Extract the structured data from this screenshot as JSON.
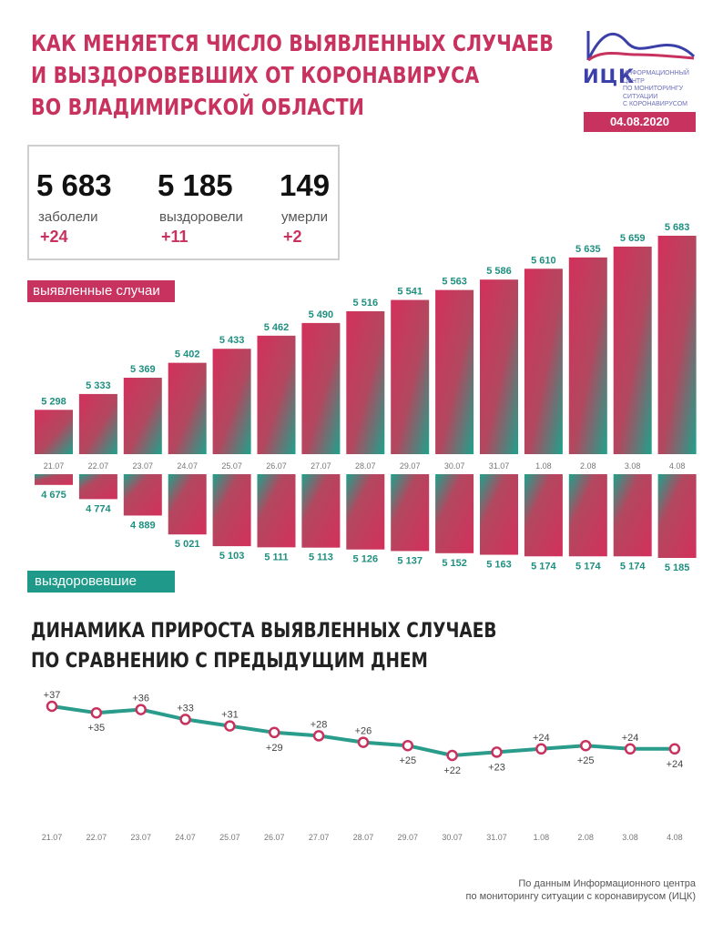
{
  "header": {
    "title_lines": [
      "КАК МЕНЯЕТСЯ ЧИСЛО ВЫЯВЛЕННЫХ СЛУЧАЕВ",
      "И ВЫЗДОРОВЕВШИХ ОТ КОРОНАВИРУСА",
      "ВО ВЛАДИМИРСКОЙ ОБЛАСТИ"
    ],
    "logo_name": "ИЦК",
    "logo_sub_lines": [
      "ИНФОРМАЦИОННЫЙ ЦЕНТР",
      "ПО МОНИТОРИНГУ СИТУАЦИИ",
      "С КОРОНАВИРУСОМ"
    ],
    "date": "04.08.2020"
  },
  "totals": [
    {
      "value": "5 683",
      "label": "заболели",
      "delta": "+24"
    },
    {
      "value": "5 185",
      "label": "выздоровели",
      "delta": "+11"
    },
    {
      "value": "149",
      "label": "умерли",
      "delta": "+2"
    }
  ],
  "labels": {
    "cases_tag": "выявленные случаи",
    "recovered_tag": "выздоровевшие",
    "dynamics_title_lines": [
      "ДИНАМИКА ПРИРОСТА ВЫЯВЛЕННЫХ СЛУЧАЕВ",
      "ПО СРАВНЕНИЮ С ПРЕДЫДУЩИМ ДНЕМ"
    ],
    "source_lines": [
      "По данным Информационного центра",
      "по мониторингу ситуации с коронавирусом (ИЦК)"
    ]
  },
  "colors": {
    "accent": "#c8325f",
    "teal": "#1f9a8a",
    "brand": "#3b3fa8"
  },
  "chart_data": [
    {
      "type": "bar",
      "series": [
        {
          "name": "выявленные случаи",
          "values": [
            5298,
            5333,
            5369,
            5402,
            5433,
            5462,
            5490,
            5516,
            5541,
            5563,
            5586,
            5610,
            5635,
            5659,
            5683
          ]
        }
      ],
      "categories": [
        "21.07",
        "22.07",
        "23.07",
        "24.07",
        "25.07",
        "26.07",
        "27.07",
        "28.07",
        "29.07",
        "30.07",
        "31.07",
        "1.08",
        "2.08",
        "3.08",
        "4.08"
      ],
      "value_labels": [
        "5 298",
        "5 333",
        "5 369",
        "5 402",
        "5 433",
        "5 462",
        "5 490",
        "5 516",
        "5 541",
        "5 563",
        "5 586",
        "5 610",
        "5 635",
        "5 659",
        "5 683"
      ]
    },
    {
      "type": "bar",
      "series": [
        {
          "name": "выздоровевшие",
          "values": [
            4675,
            4774,
            4889,
            5021,
            5103,
            5111,
            5113,
            5126,
            5137,
            5152,
            5163,
            5174,
            5174,
            5174,
            5185
          ]
        }
      ],
      "categories": [
        "21.07",
        "22.07",
        "23.07",
        "24.07",
        "25.07",
        "26.07",
        "27.07",
        "28.07",
        "29.07",
        "30.07",
        "31.07",
        "1.08",
        "2.08",
        "3.08",
        "4.08"
      ],
      "value_labels": [
        "4 675",
        "4 774",
        "4 889",
        "5 021",
        "5 103",
        "5 111",
        "5 113",
        "5 126",
        "5 137",
        "5 152",
        "5 163",
        "5 174",
        "5 174",
        "5 174",
        "5 185"
      ]
    },
    {
      "type": "line",
      "title": "ДИНАМИКА ПРИРОСТА ВЫЯВЛЕННЫХ СЛУЧАЕВ ПО СРАВНЕНИЮ С ПРЕДЫДУЩИМ ДНЕМ",
      "categories": [
        "21.07",
        "22.07",
        "23.07",
        "24.07",
        "25.07",
        "26.07",
        "27.07",
        "28.07",
        "29.07",
        "30.07",
        "31.07",
        "1.08",
        "2.08",
        "3.08",
        "4.08"
      ],
      "series": [
        {
          "values": [
            37,
            35,
            36,
            33,
            31,
            29,
            28,
            26,
            25,
            22,
            23,
            24,
            25,
            24,
            24
          ]
        }
      ],
      "value_labels": [
        "+37",
        "+35",
        "+36",
        "+33",
        "+31",
        "+29",
        "+28",
        "+26",
        "+25",
        "+22",
        "+23",
        "+24",
        "+25",
        "+24",
        "+24"
      ],
      "label_positions": [
        "above",
        "below",
        "above",
        "above",
        "above",
        "below",
        "above",
        "above",
        "below",
        "below",
        "below",
        "above",
        "below",
        "above",
        "below"
      ]
    }
  ]
}
